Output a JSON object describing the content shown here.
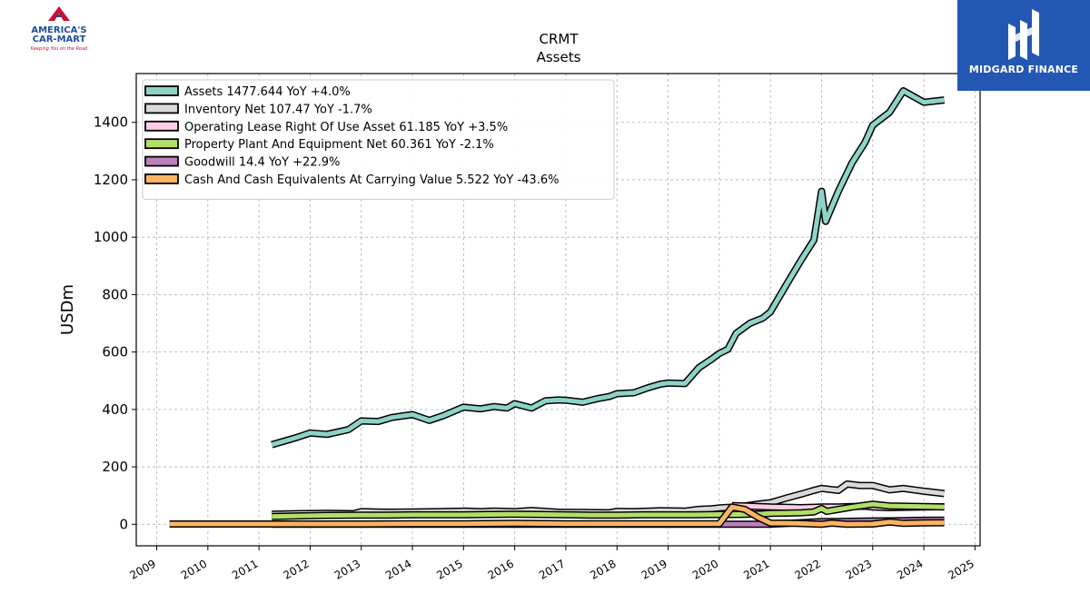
{
  "logos": {
    "left_line1": "AMERICA'S",
    "left_line2": "CAR-MART",
    "left_tagline": "Keeping You on the Road",
    "right_text": "MIDGARD FINANCE"
  },
  "chart_data": {
    "type": "line",
    "title": "CRMT",
    "subtitle": "Assets",
    "ylabel": "USDm",
    "xlabel": "",
    "xlim": [
      2008.6,
      2025.1
    ],
    "ylim": [
      -75,
      1570
    ],
    "xticks": [
      "2009",
      "2010",
      "2011",
      "2012",
      "2013",
      "2014",
      "2015",
      "2016",
      "2017",
      "2018",
      "2019",
      "2020",
      "2021",
      "2022",
      "2023",
      "2024",
      "2025"
    ],
    "yticks": [
      0,
      200,
      400,
      600,
      800,
      1000,
      1200,
      1400
    ],
    "grid": true,
    "legend_position": "top-left",
    "series": [
      {
        "name": "Assets  1477.644 YoY +4.0%",
        "color": "#8dd3c7",
        "x": [
          2011.25,
          2011.5,
          2011.75,
          2012.0,
          2012.33,
          2012.75,
          2013.0,
          2013.33,
          2013.6,
          2014.0,
          2014.33,
          2014.6,
          2015.0,
          2015.33,
          2015.6,
          2015.85,
          2016.0,
          2016.33,
          2016.6,
          2016.85,
          2017.0,
          2017.33,
          2017.6,
          2017.85,
          2018.0,
          2018.33,
          2018.6,
          2018.85,
          2019.0,
          2019.33,
          2019.6,
          2019.85,
          2020.0,
          2020.17,
          2020.33,
          2020.6,
          2020.85,
          2021.0,
          2021.33,
          2021.6,
          2021.85,
          2022.0,
          2022.08,
          2022.33,
          2022.6,
          2022.85,
          2023.0,
          2023.33,
          2023.6,
          2023.85,
          2024.0,
          2024.4
        ],
        "values": [
          277,
          290,
          303,
          318,
          313,
          330,
          360,
          358,
          372,
          382,
          362,
          378,
          408,
          402,
          410,
          405,
          420,
          405,
          430,
          433,
          432,
          425,
          437,
          445,
          455,
          458,
          475,
          488,
          492,
          490,
          545,
          575,
          595,
          610,
          665,
          700,
          718,
          740,
          840,
          920,
          990,
          1160,
          1055,
          1160,
          1260,
          1330,
          1390,
          1435,
          1510,
          1485,
          1470,
          1478
        ]
      },
      {
        "name": "Inventory Net  107.47 YoY -1.7%",
        "color": "#d9d9d9",
        "x": [
          2011.25,
          2011.75,
          2012.33,
          2012.85,
          2013.0,
          2013.5,
          2014.0,
          2014.5,
          2015.0,
          2015.33,
          2015.6,
          2016.0,
          2016.33,
          2016.85,
          2017.33,
          2017.85,
          2018.0,
          2018.33,
          2018.85,
          2019.33,
          2019.6,
          2019.85,
          2020.0,
          2020.33,
          2020.85,
          2021.0,
          2021.33,
          2021.6,
          2021.85,
          2022.0,
          2022.33,
          2022.5,
          2022.75,
          2023.0,
          2023.33,
          2023.6,
          2024.0,
          2024.4
        ],
        "values": [
          35,
          37,
          38,
          37,
          44,
          42,
          43,
          44,
          46,
          44,
          46,
          44,
          48,
          42,
          41,
          40,
          45,
          44,
          47,
          46,
          52,
          54,
          57,
          60,
          72,
          75,
          92,
          105,
          118,
          125,
          118,
          140,
          135,
          135,
          120,
          125,
          115,
          107
        ]
      },
      {
        "name": "Operating Lease Right Of Use Asset  61.185 YoY +3.5%",
        "color": "#fccde5",
        "x": [
          2020.25,
          2020.5,
          2020.75,
          2021.0,
          2021.33,
          2021.6,
          2021.85,
          2022.0,
          2022.33,
          2022.6,
          2022.85,
          2023.0,
          2023.33,
          2023.6,
          2024.0,
          2024.4
        ],
        "values": [
          65,
          64,
          62,
          60,
          59,
          58,
          59,
          60,
          60,
          62,
          63,
          60,
          58,
          59,
          60,
          61
        ]
      },
      {
        "name": "Property Plant And Equipment Net  60.361 YoY -2.1%",
        "color": "#b3de69",
        "x": [
          2011.25,
          2011.75,
          2012.33,
          2013.0,
          2013.5,
          2014.0,
          2014.5,
          2015.0,
          2015.5,
          2016.0,
          2016.5,
          2017.0,
          2017.5,
          2018.0,
          2018.5,
          2019.0,
          2019.5,
          2020.0,
          2020.33,
          2020.85,
          2021.0,
          2021.33,
          2021.6,
          2021.85,
          2022.0,
          2022.1,
          2022.33,
          2022.6,
          2022.85,
          2023.0,
          2023.33,
          2023.6,
          2024.0,
          2024.4
        ],
        "values": [
          27,
          29,
          31,
          32,
          32,
          33,
          33,
          33,
          34,
          35,
          34,
          33,
          32,
          32,
          33,
          33,
          33,
          34,
          34,
          36,
          38,
          39,
          40,
          43,
          55,
          45,
          52,
          60,
          66,
          70,
          64,
          63,
          62,
          60
        ]
      },
      {
        "name": "Goodwill  14.4 YoY +22.9%",
        "color": "#bc80bd",
        "x": [
          2011.25,
          2012.0,
          2013.0,
          2014.0,
          2015.0,
          2016.0,
          2017.0,
          2018.0,
          2019.0,
          2020.0,
          2021.0,
          2022.0,
          2022.33,
          2023.0,
          2023.33,
          2024.0,
          2024.4
        ],
        "values": [
          0.4,
          0.4,
          0.4,
          0.4,
          0.4,
          0.4,
          0.4,
          0.4,
          0.4,
          0.4,
          0.4,
          9,
          9.5,
          11.7,
          12,
          14,
          14.4
        ]
      },
      {
        "name": "Cash And Cash Equivalents At Carrying Value  5.522 YoY -43.6%",
        "color": "#fdb462",
        "x": [
          2009.25,
          2010.0,
          2011.0,
          2012.0,
          2013.0,
          2014.0,
          2015.0,
          2016.0,
          2017.0,
          2018.0,
          2019.0,
          2020.0,
          2020.25,
          2020.5,
          2020.75,
          2021.0,
          2021.5,
          2021.85,
          2022.0,
          2022.2,
          2022.5,
          2023.0,
          2023.33,
          2023.6,
          2024.0,
          2024.4
        ],
        "values": [
          1,
          1,
          1,
          1,
          1,
          2,
          2,
          3,
          2,
          2,
          2,
          2,
          60,
          52,
          25,
          4,
          3,
          1,
          0,
          4,
          0,
          1,
          8,
          3,
          5,
          5.5
        ]
      }
    ]
  }
}
